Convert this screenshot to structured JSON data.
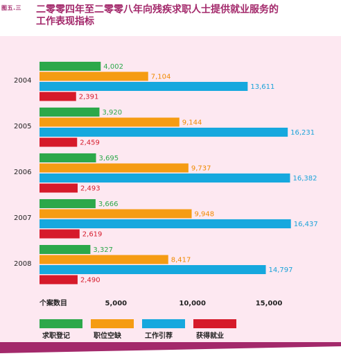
{
  "figure_label": "图五.三",
  "title_lines": [
    "二零零四年至二零零八年向残疾求职人士提供就业服务的",
    "工作表现指标"
  ],
  "colors": {
    "title": "#a3296b",
    "panel_bg": "#fde8f1",
    "bottom_bar": "#a3296b"
  },
  "chart_data": {
    "type": "bar",
    "orientation": "horizontal",
    "categories": [
      "2004",
      "2005",
      "2006",
      "2007",
      "2008"
    ],
    "series": [
      {
        "name": "求职登记",
        "color": "#2ca84a",
        "label_color": "#2ca84a",
        "values": [
          4002,
          3920,
          3695,
          3666,
          3327
        ],
        "labels": [
          "4,002",
          "3,920",
          "3,695",
          "3,666",
          "3,327"
        ]
      },
      {
        "name": "职位空缺",
        "color": "#f59c13",
        "label_color": "#f08a00",
        "values": [
          7104,
          9144,
          9737,
          9948,
          8417
        ],
        "labels": [
          "7,104",
          "9,144",
          "9,737",
          "9,948",
          "8,417"
        ]
      },
      {
        "name": "工作引荐",
        "color": "#16a8de",
        "label_color": "#1aa3d9",
        "values": [
          13611,
          16231,
          16382,
          16437,
          14797
        ],
        "labels": [
          "13,611",
          "16,231",
          "16,382",
          "16,437",
          "14,797"
        ]
      },
      {
        "name": "获得就业",
        "color": "#d61a2a",
        "label_color": "#d61a2a",
        "values": [
          2391,
          2459,
          2493,
          2619,
          2490
        ],
        "labels": [
          "2,391",
          "2,459",
          "2,493",
          "2,619",
          "2,490"
        ]
      }
    ],
    "xlabel": "个案数目",
    "xticks": [
      5000,
      10000,
      15000
    ],
    "xtick_labels": [
      "5,000",
      "10,000",
      "15,000"
    ],
    "xlim": [
      0,
      19000
    ],
    "legend_position": "bottom",
    "grid": false
  }
}
